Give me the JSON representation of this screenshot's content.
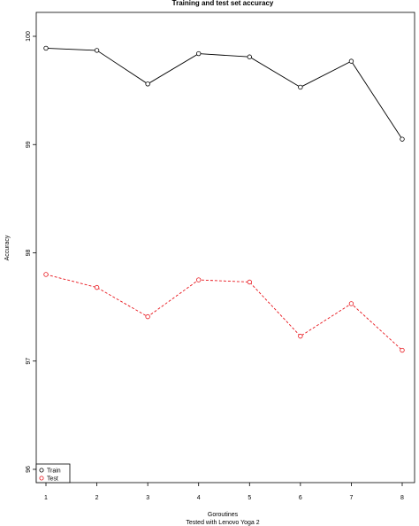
{
  "chart_data": {
    "type": "line",
    "title": "Training and test set accuracy",
    "xlabel": "Goroutines",
    "subtitle": "Tested with Lenovo Yoga 2",
    "ylabel": "Accuracy",
    "x": [
      1,
      2,
      3,
      4,
      5,
      6,
      7,
      8
    ],
    "xlim": [
      1,
      8
    ],
    "ylim": [
      96,
      100
    ],
    "yticks": [
      96,
      97,
      98,
      99,
      100
    ],
    "grid": false,
    "legend_position": "bottom-left",
    "series": [
      {
        "name": "Train",
        "color": "#000000",
        "line": "solid",
        "values": [
          99.89,
          99.87,
          99.56,
          99.84,
          99.81,
          99.53,
          99.77,
          99.05
        ]
      },
      {
        "name": "Test",
        "color": "#e8141b",
        "line": "dashed",
        "values": [
          97.8,
          97.68,
          97.41,
          97.75,
          97.73,
          97.23,
          97.53,
          97.1
        ]
      }
    ]
  }
}
